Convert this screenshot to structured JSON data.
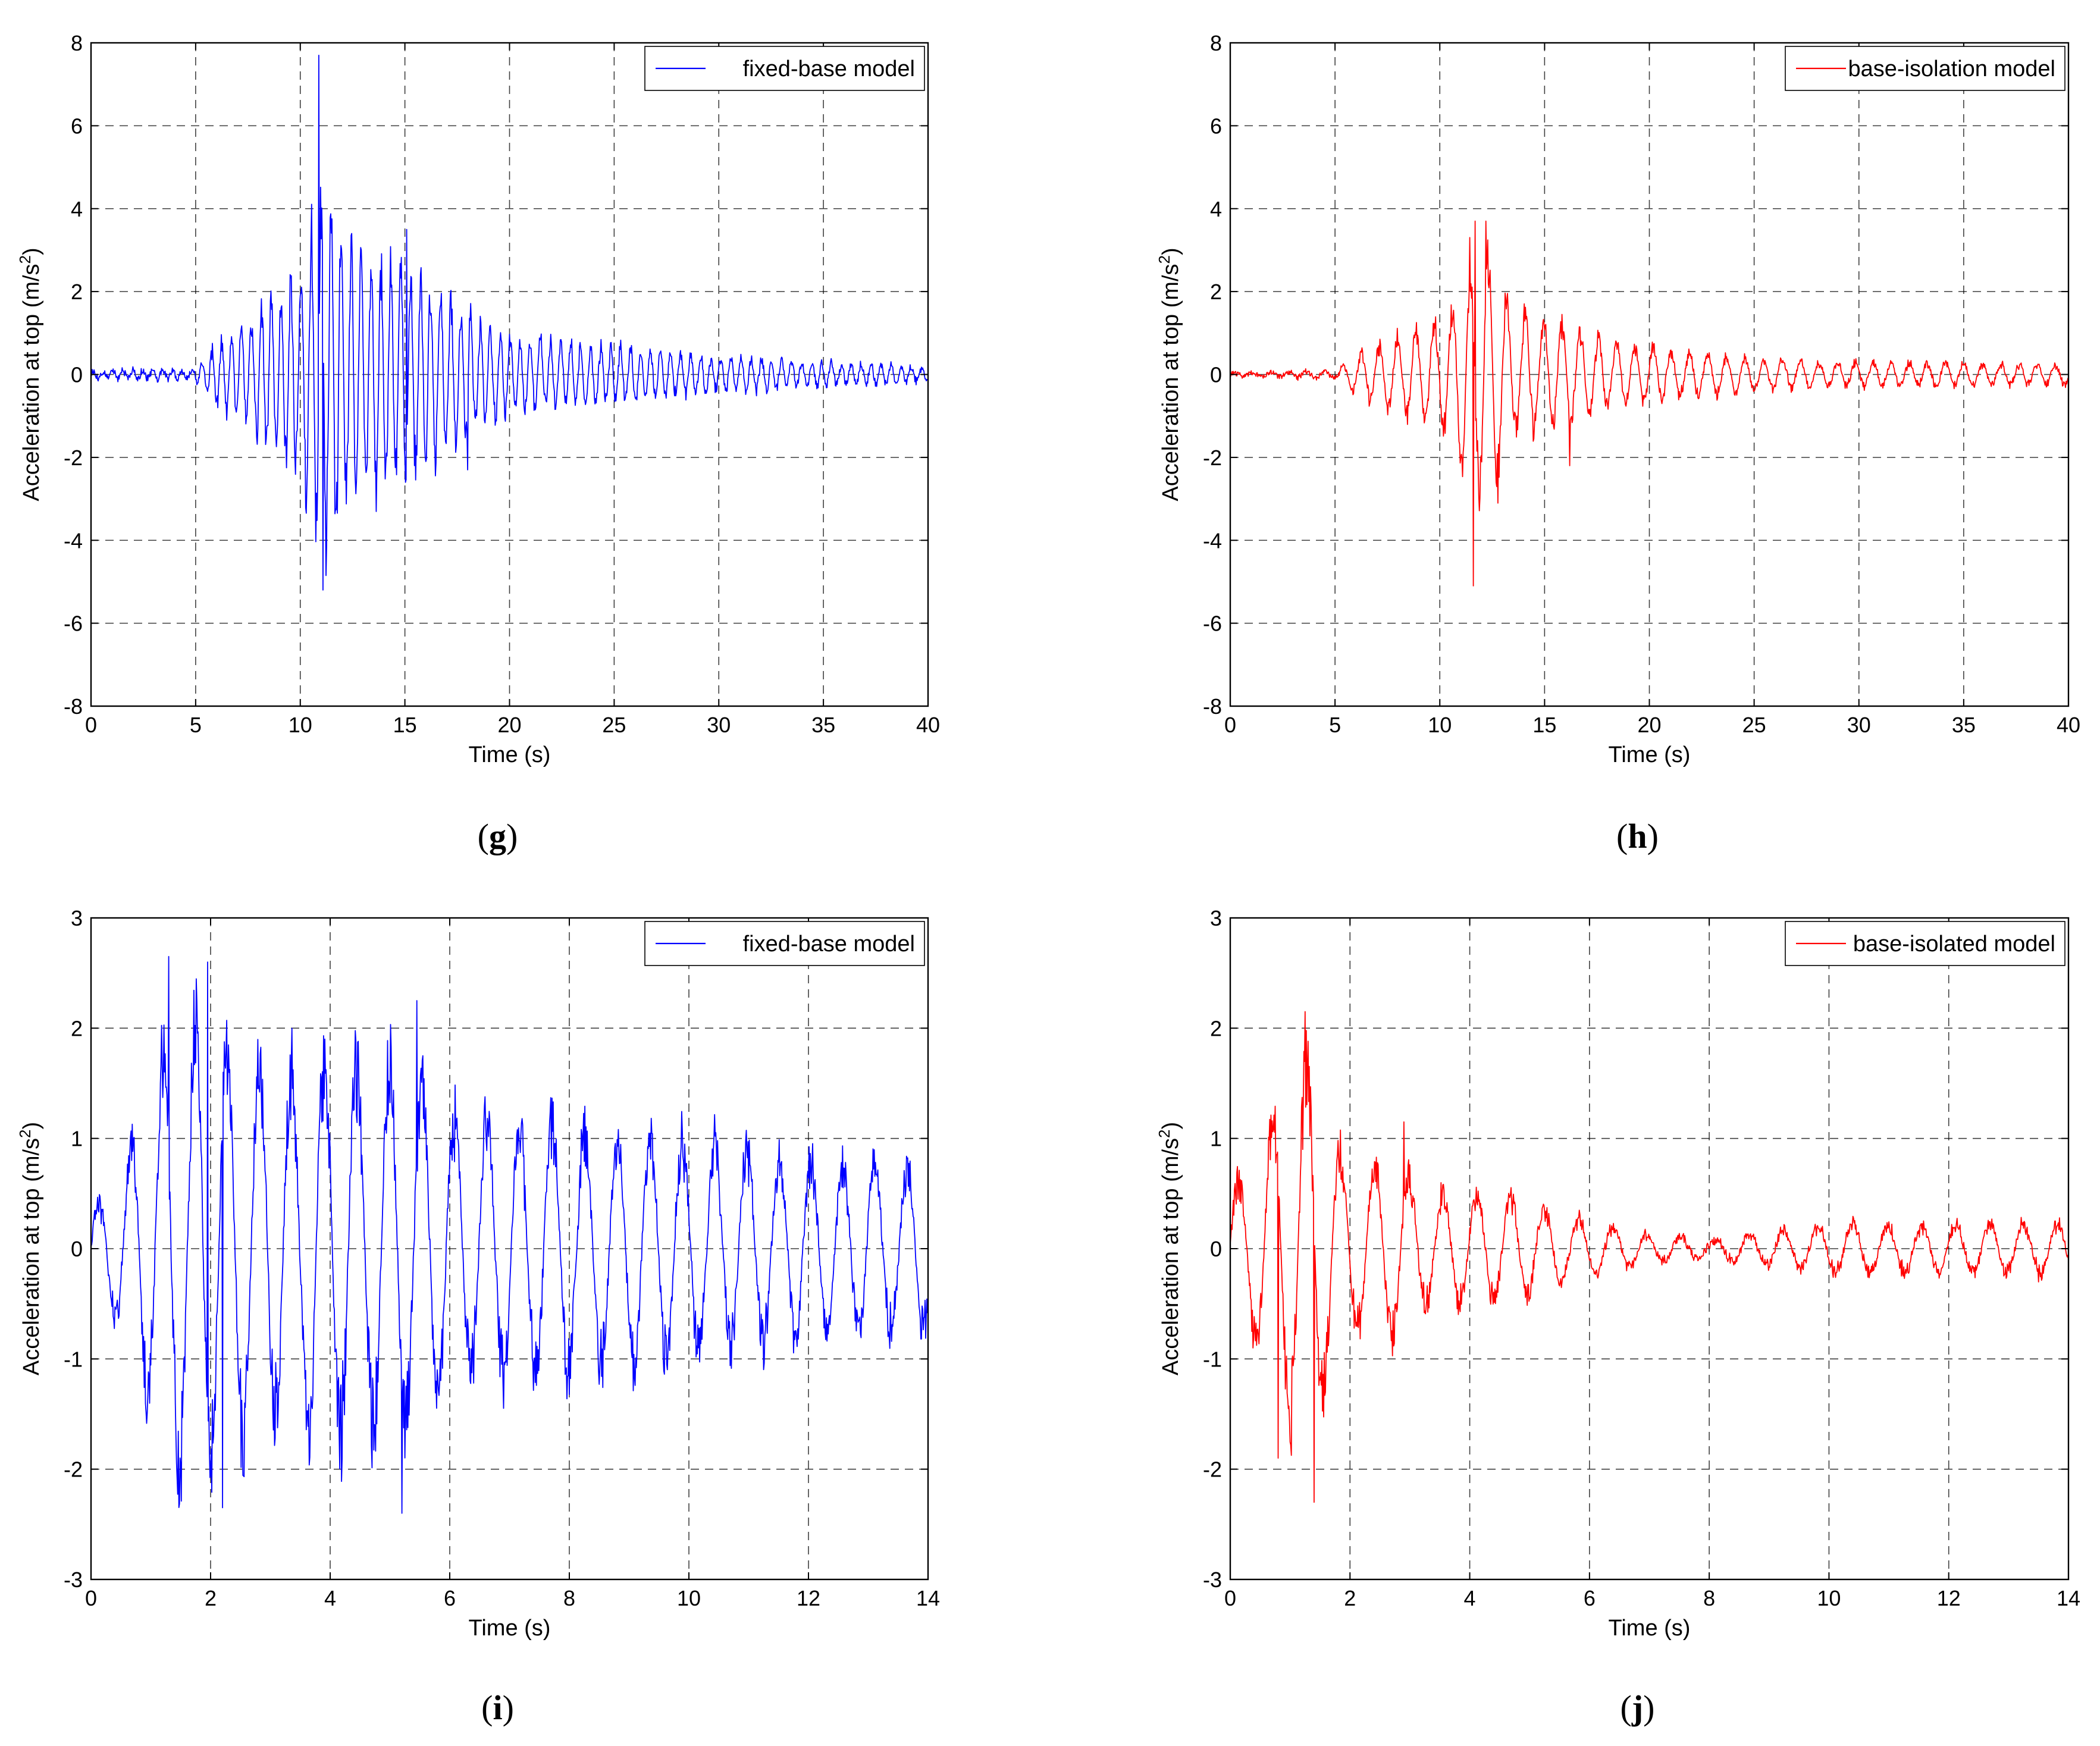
{
  "chart_data": [
    {
      "type": "line",
      "panel": "g",
      "caption_letter": "g",
      "xlabel": "Time (s)",
      "ylabel": "Acceleration at top (m/s",
      "ylabel_sup": "2",
      "ylabel_close": ")",
      "xlim": [
        0,
        40
      ],
      "ylim": [
        -8,
        8
      ],
      "xticks": [
        0,
        5,
        10,
        15,
        20,
        25,
        30,
        35,
        40
      ],
      "yticks": [
        -8,
        -6,
        -4,
        -2,
        0,
        2,
        4,
        6,
        8
      ],
      "grid": true,
      "legend_position": "top-right",
      "series": [
        {
          "name": "fixed-base model",
          "color": "#0000ff",
          "signal": {
            "duration_s": 40,
            "samples": 1400,
            "frequency_hz": 2.1,
            "baseline_noise": 0.12,
            "envelope": [
              [
                0,
                0.1
              ],
              [
                5,
                0.15
              ],
              [
                6,
                0.9
              ],
              [
                8,
                1.8
              ],
              [
                10,
                3.0
              ],
              [
                11,
                5.5
              ],
              [
                12,
                4.0
              ],
              [
                13,
                3.3
              ],
              [
                15,
                3.0
              ],
              [
                17,
                2.3
              ],
              [
                20,
                1.1
              ],
              [
                25,
                0.8
              ],
              [
                30,
                0.5
              ],
              [
                35,
                0.35
              ],
              [
                40,
                0.2
              ]
            ]
          },
          "peaks": [
            [
              10.9,
              7.7
            ],
            [
              11.1,
              -5.2
            ],
            [
              15.1,
              3.5
            ],
            [
              18.0,
              -2.3
            ]
          ]
        }
      ]
    },
    {
      "type": "line",
      "panel": "h",
      "caption_letter": "h",
      "xlabel": "Time (s)",
      "ylabel": "Acceleration at top (m/s",
      "ylabel_sup": "2",
      "ylabel_close": ")",
      "xlim": [
        0,
        40
      ],
      "ylim": [
        -8,
        8
      ],
      "xticks": [
        0,
        5,
        10,
        15,
        20,
        25,
        30,
        35,
        40
      ],
      "yticks": [
        -8,
        -6,
        -4,
        -2,
        0,
        2,
        4,
        6,
        8
      ],
      "grid": true,
      "legend_position": "top-right",
      "series": [
        {
          "name": "base-isolation model",
          "color": "#ff0000",
          "signal": {
            "duration_s": 40,
            "samples": 1400,
            "frequency_hz": 1.15,
            "baseline_noise": 0.1,
            "envelope": [
              [
                0,
                0.05
              ],
              [
                5,
                0.1
              ],
              [
                6.5,
                0.8
              ],
              [
                9,
                1.3
              ],
              [
                10.5,
                1.9
              ],
              [
                11.5,
                3.6
              ],
              [
                12.5,
                3.5
              ],
              [
                13.5,
                1.8
              ],
              [
                16,
                1.5
              ],
              [
                18,
                1.0
              ],
              [
                20,
                0.8
              ],
              [
                25,
                0.45
              ],
              [
                30,
                0.35
              ],
              [
                40,
                0.3
              ]
            ]
          },
          "peaks": [
            [
              11.7,
              3.7
            ],
            [
              11.6,
              -5.1
            ],
            [
              12.2,
              3.7
            ],
            [
              16.2,
              -2.2
            ]
          ]
        }
      ]
    },
    {
      "type": "line",
      "panel": "i",
      "caption_letter": "i",
      "xlabel": "Time (s)",
      "ylabel": "Acceleration at top (m/s",
      "ylabel_sup": "2",
      "ylabel_close": ")",
      "xlim": [
        0,
        14
      ],
      "ylim": [
        -3,
        3
      ],
      "xticks": [
        0,
        2,
        4,
        6,
        8,
        10,
        12,
        14
      ],
      "yticks": [
        -3,
        -2,
        -1,
        0,
        1,
        2,
        3
      ],
      "grid": true,
      "legend_position": "top-right",
      "series": [
        {
          "name": "fixed-base model",
          "color": "#0000ff",
          "signal": {
            "duration_s": 14,
            "samples": 1400,
            "frequency_hz": 1.85,
            "baseline_noise": 0.08,
            "envelope": [
              [
                0,
                0.4
              ],
              [
                0.5,
                0.9
              ],
              [
                1.0,
                1.8
              ],
              [
                1.3,
                2.5
              ],
              [
                2,
                2.5
              ],
              [
                3,
                1.9
              ],
              [
                4,
                2.2
              ],
              [
                5,
                2.1
              ],
              [
                5.5,
                2.0
              ],
              [
                6,
                1.5
              ],
              [
                8,
                1.4
              ],
              [
                10,
                1.2
              ],
              [
                12,
                1.0
              ],
              [
                14,
                0.9
              ]
            ]
          },
          "peaks": [
            [
              1.3,
              2.65
            ],
            [
              1.95,
              2.6
            ],
            [
              2.2,
              -2.35
            ],
            [
              5.2,
              -2.4
            ],
            [
              5.45,
              2.25
            ]
          ]
        }
      ]
    },
    {
      "type": "line",
      "panel": "j",
      "caption_letter": "j",
      "xlabel": "Time (s)",
      "ylabel": "Acceleration at top (m/s",
      "ylabel_sup": "2",
      "ylabel_close": ")",
      "xlim": [
        0,
        14
      ],
      "ylim": [
        -3,
        3
      ],
      "xticks": [
        0,
        2,
        4,
        6,
        8,
        10,
        12,
        14
      ],
      "yticks": [
        -3,
        -2,
        -1,
        0,
        1,
        2,
        3
      ],
      "grid": true,
      "legend_position": "top-right",
      "series": [
        {
          "name": "base-isolated model",
          "color": "#ff0000",
          "signal": {
            "duration_s": 14,
            "samples": 1400,
            "frequency_hz": 1.75,
            "baseline_noise": 0.06,
            "envelope": [
              [
                0,
                0.7
              ],
              [
                0.5,
                1.1
              ],
              [
                0.9,
                1.9
              ],
              [
                1.3,
                2.2
              ],
              [
                1.6,
                1.5
              ],
              [
                2,
                0.9
              ],
              [
                2.8,
                1.0
              ],
              [
                3.3,
                0.6
              ],
              [
                4.6,
                0.6
              ],
              [
                5.5,
                0.4
              ],
              [
                7,
                0.15
              ],
              [
                8,
                0.1
              ],
              [
                9,
                0.2
              ],
              [
                10,
                0.28
              ],
              [
                14,
                0.28
              ]
            ]
          },
          "peaks": [
            [
              1.25,
              2.15
            ],
            [
              1.4,
              -2.3
            ],
            [
              0.8,
              -1.9
            ],
            [
              2.9,
              1.15
            ]
          ]
        }
      ]
    }
  ]
}
